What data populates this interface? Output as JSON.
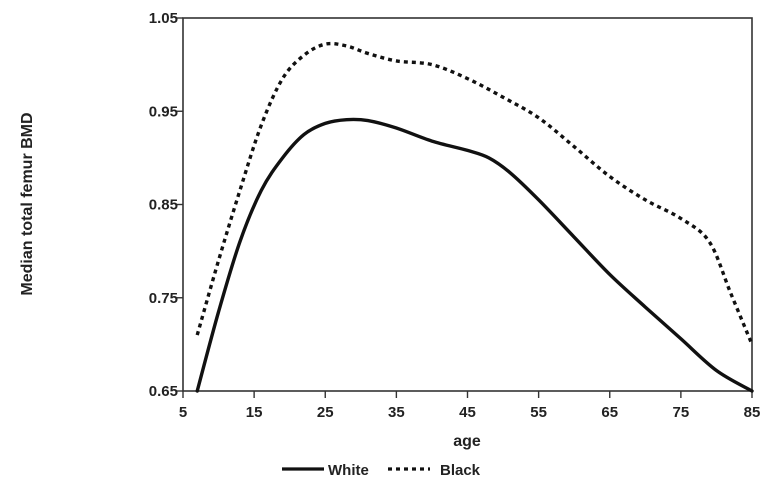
{
  "chart_data": {
    "type": "line",
    "title": "",
    "xlabel": "age",
    "ylabel": "Median total femur BMD",
    "xlim": [
      5,
      85
    ],
    "ylim": [
      0.65,
      1.05
    ],
    "xticks": [
      5,
      15,
      25,
      35,
      45,
      55,
      65,
      75,
      85
    ],
    "xtick_labels": [
      "5",
      "15",
      "25",
      "35",
      "45",
      "55",
      "65",
      "75",
      "85"
    ],
    "yticks": [
      0.65,
      0.75,
      0.85,
      0.95,
      1.05
    ],
    "ytick_labels": [
      "0.65",
      "0.75",
      "0.85",
      "0.95",
      "1.05"
    ],
    "grid": false,
    "legend_position": "bottom",
    "series": [
      {
        "name": "White",
        "style": "solid",
        "color": "#111111",
        "x": [
          7,
          10,
          13,
          16,
          19,
          22,
          25,
          28,
          31,
          35,
          40,
          45,
          48,
          51,
          55,
          60,
          65,
          70,
          75,
          80,
          85
        ],
        "y": [
          0.65,
          0.735,
          0.81,
          0.865,
          0.9,
          0.925,
          0.937,
          0.941,
          0.94,
          0.932,
          0.918,
          0.908,
          0.9,
          0.884,
          0.855,
          0.815,
          0.775,
          0.74,
          0.706,
          0.672,
          0.65
        ]
      },
      {
        "name": "Black",
        "style": "dotted",
        "color": "#111111",
        "x": [
          7,
          10,
          13,
          16,
          19,
          22,
          25,
          28,
          31,
          35,
          40,
          45,
          50,
          55,
          60,
          65,
          70,
          75,
          79,
          82,
          85
        ],
        "y": [
          0.71,
          0.79,
          0.865,
          0.935,
          0.985,
          1.01,
          1.022,
          1.02,
          1.012,
          1.004,
          1.0,
          0.985,
          0.965,
          0.943,
          0.912,
          0.88,
          0.855,
          0.835,
          0.81,
          0.755,
          0.7
        ]
      }
    ]
  }
}
